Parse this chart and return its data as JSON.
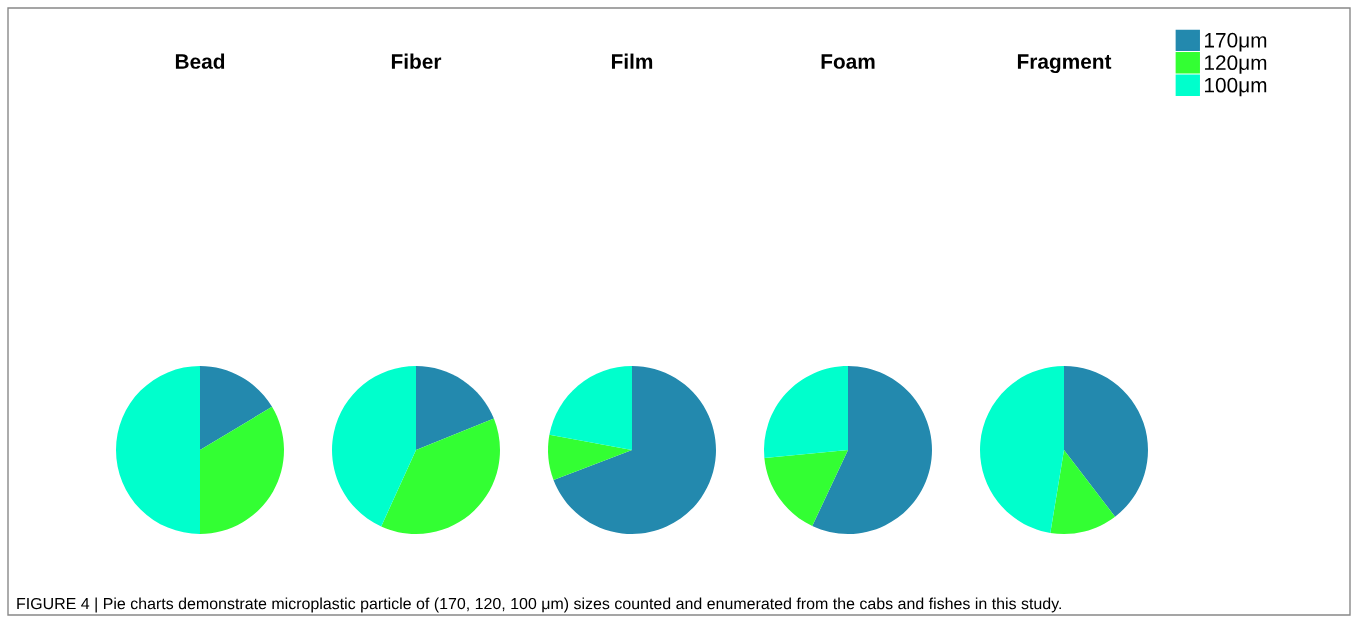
{
  "chart_data": [
    {
      "type": "pie",
      "title": "Bead",
      "categories": [
        "170μm",
        "120μm",
        "100μm"
      ],
      "values": [
        16.4,
        33.6,
        50.0
      ],
      "colors": [
        "#2389ae",
        "#33ff33",
        "#00ffcc"
      ],
      "legend": "top right",
      "annotations": [
        "FIGURE 4 | Pie charts demonstrate microplastic particle of (170, 120, 100 μm) sizes counted and enumerated from the cabs and fishes in this study."
      ]
    },
    {
      "type": "pie",
      "title": "Fiber",
      "values": [
        18.9,
        37.9,
        43.2
      ],
      "colors": [
        "#2389ae",
        "#33ff33",
        "#00ffcc"
      ]
    },
    {
      "type": "pie",
      "title": "Film",
      "values": [
        69.2,
        8.7,
        22.1
      ],
      "colors": [
        "#2389ae",
        "#33ff33",
        "#00ffcc"
      ]
    },
    {
      "type": "pie",
      "title": "Foam",
      "values": [
        57.0,
        16.5,
        26.5
      ],
      "colors": [
        "#2389ae",
        "#33ff33",
        "#00ffcc"
      ]
    },
    {
      "type": "pie",
      "title": "Fragment",
      "values": [
        39.6,
        13.0,
        47.4
      ],
      "colors": [
        "#2389ae",
        "#33ff33",
        "#00ffcc"
      ]
    }
  ]
}
